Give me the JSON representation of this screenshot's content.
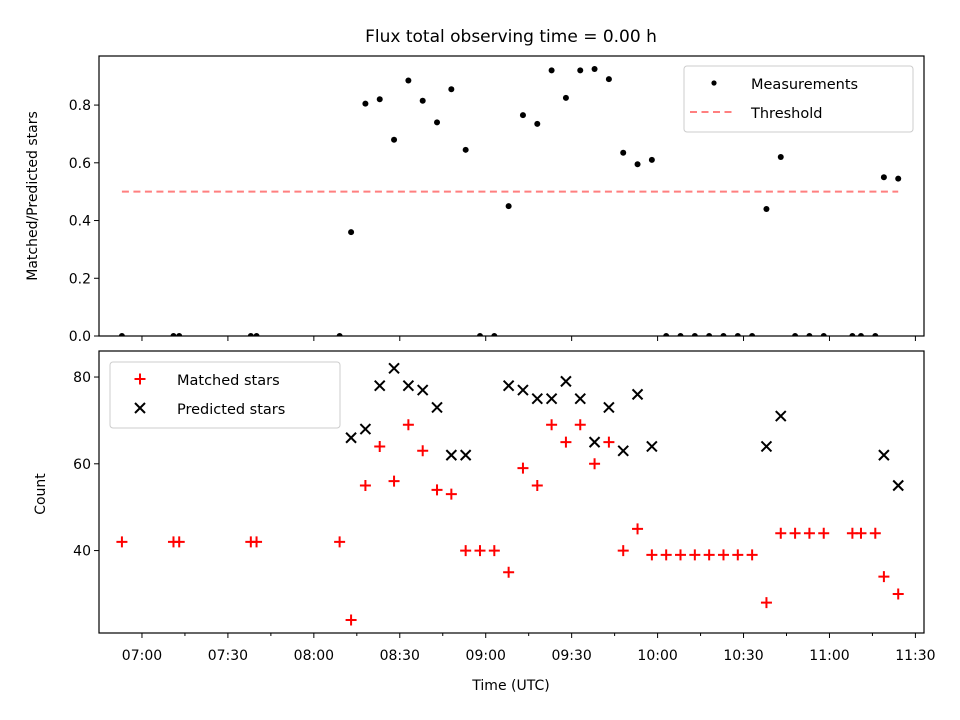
{
  "figure": {
    "title": "Flux total observing time = 0.00 h"
  },
  "chart_data": [
    {
      "type": "scatter",
      "panel": "top",
      "ylabel": "Matched/Predicted stars",
      "xlabel": "",
      "ylim": [
        0,
        0.97
      ],
      "yticks": [
        0.0,
        0.2,
        0.4,
        0.6,
        0.8
      ],
      "ytick_labels": [
        "0.0",
        "0.2",
        "0.4",
        "0.6",
        "0.8"
      ],
      "legend_position": "upper right",
      "series": [
        {
          "name": "Measurements",
          "marker": "dot",
          "color": "#000000",
          "points": [
            [
              "06:53",
              0.0
            ],
            [
              "07:11",
              0.0
            ],
            [
              "07:13",
              0.0
            ],
            [
              "07:38",
              0.0
            ],
            [
              "07:40",
              0.0
            ],
            [
              "08:09",
              0.0
            ],
            [
              "08:13",
              0.36
            ],
            [
              "08:18",
              0.805
            ],
            [
              "08:23",
              0.82
            ],
            [
              "08:28",
              0.68
            ],
            [
              "08:33",
              0.885
            ],
            [
              "08:38",
              0.815
            ],
            [
              "08:43",
              0.74
            ],
            [
              "08:48",
              0.855
            ],
            [
              "08:53",
              0.645
            ],
            [
              "08:58",
              0.0
            ],
            [
              "09:03",
              0.0
            ],
            [
              "09:08",
              0.45
            ],
            [
              "09:13",
              0.765
            ],
            [
              "09:18",
              0.735
            ],
            [
              "09:23",
              0.92
            ],
            [
              "09:28",
              0.825
            ],
            [
              "09:33",
              0.92
            ],
            [
              "09:38",
              0.925
            ],
            [
              "09:43",
              0.89
            ],
            [
              "09:48",
              0.635
            ],
            [
              "09:53",
              0.595
            ],
            [
              "09:58",
              0.61
            ],
            [
              "10:03",
              0.0
            ],
            [
              "10:08",
              0.0
            ],
            [
              "10:13",
              0.0
            ],
            [
              "10:18",
              0.0
            ],
            [
              "10:23",
              0.0
            ],
            [
              "10:28",
              0.0
            ],
            [
              "10:33",
              0.0
            ],
            [
              "10:38",
              0.44
            ],
            [
              "10:43",
              0.62
            ],
            [
              "10:48",
              0.0
            ],
            [
              "10:53",
              0.0
            ],
            [
              "10:58",
              0.0
            ],
            [
              "11:08",
              0.0
            ],
            [
              "11:11",
              0.0
            ],
            [
              "11:16",
              0.0
            ],
            [
              "11:19",
              0.55
            ],
            [
              "11:24",
              0.545
            ]
          ]
        },
        {
          "name": "Threshold",
          "marker": "dashed-line",
          "color": "#ff7f7f",
          "points": [
            [
              "06:53",
              0.5
            ],
            [
              "11:24",
              0.5
            ]
          ]
        }
      ]
    },
    {
      "type": "scatter",
      "panel": "bottom",
      "ylabel": "Count",
      "xlabel": "Time (UTC)",
      "ylim": [
        21,
        86
      ],
      "yticks": [
        40,
        60,
        80
      ],
      "ytick_labels": [
        "40",
        "60",
        "80"
      ],
      "legend_position": "upper left",
      "series": [
        {
          "name": "Matched stars",
          "marker": "plus",
          "color": "#ff0000",
          "points": [
            [
              "06:53",
              42
            ],
            [
              "07:11",
              42
            ],
            [
              "07:13",
              42
            ],
            [
              "07:38",
              42
            ],
            [
              "07:40",
              42
            ],
            [
              "08:09",
              42
            ],
            [
              "08:13",
              24
            ],
            [
              "08:18",
              55
            ],
            [
              "08:23",
              64
            ],
            [
              "08:28",
              56
            ],
            [
              "08:33",
              69
            ],
            [
              "08:38",
              63
            ],
            [
              "08:43",
              54
            ],
            [
              "08:48",
              53
            ],
            [
              "08:53",
              40
            ],
            [
              "08:58",
              40
            ],
            [
              "09:03",
              40
            ],
            [
              "09:08",
              35
            ],
            [
              "09:13",
              59
            ],
            [
              "09:18",
              55
            ],
            [
              "09:23",
              69
            ],
            [
              "09:28",
              65
            ],
            [
              "09:33",
              69
            ],
            [
              "09:38",
              60
            ],
            [
              "09:43",
              65
            ],
            [
              "09:48",
              40
            ],
            [
              "09:53",
              45
            ],
            [
              "09:58",
              39
            ],
            [
              "10:03",
              39
            ],
            [
              "10:08",
              39
            ],
            [
              "10:13",
              39
            ],
            [
              "10:18",
              39
            ],
            [
              "10:23",
              39
            ],
            [
              "10:28",
              39
            ],
            [
              "10:33",
              39
            ],
            [
              "10:38",
              28
            ],
            [
              "10:43",
              44
            ],
            [
              "10:48",
              44
            ],
            [
              "10:53",
              44
            ],
            [
              "10:58",
              44
            ],
            [
              "11:08",
              44
            ],
            [
              "11:11",
              44
            ],
            [
              "11:16",
              44
            ],
            [
              "11:19",
              34
            ],
            [
              "11:24",
              30
            ]
          ]
        },
        {
          "name": "Predicted stars",
          "marker": "x",
          "color": "#000000",
          "points": [
            [
              "08:13",
              66
            ],
            [
              "08:18",
              68
            ],
            [
              "08:23",
              78
            ],
            [
              "08:28",
              82
            ],
            [
              "08:33",
              78
            ],
            [
              "08:38",
              77
            ],
            [
              "08:43",
              73
            ],
            [
              "08:48",
              62
            ],
            [
              "08:53",
              62
            ],
            [
              "09:08",
              78
            ],
            [
              "09:13",
              77
            ],
            [
              "09:18",
              75
            ],
            [
              "09:23",
              75
            ],
            [
              "09:28",
              79
            ],
            [
              "09:33",
              75
            ],
            [
              "09:38",
              65
            ],
            [
              "09:43",
              73
            ],
            [
              "09:48",
              63
            ],
            [
              "09:53",
              76
            ],
            [
              "09:58",
              64
            ],
            [
              "10:38",
              64
            ],
            [
              "10:43",
              71
            ],
            [
              "11:19",
              62
            ],
            [
              "11:24",
              55
            ]
          ]
        }
      ]
    }
  ],
  "xaxis": {
    "xlim": [
      "06:45",
      "11:33"
    ],
    "ticks": [
      "07:00",
      "07:30",
      "08:00",
      "08:30",
      "09:00",
      "09:30",
      "10:00",
      "10:30",
      "11:00",
      "11:30"
    ],
    "minor_ticks": [
      "07:15",
      "07:45",
      "08:15",
      "08:45",
      "09:15",
      "09:45",
      "10:15",
      "10:45",
      "11:15"
    ]
  }
}
